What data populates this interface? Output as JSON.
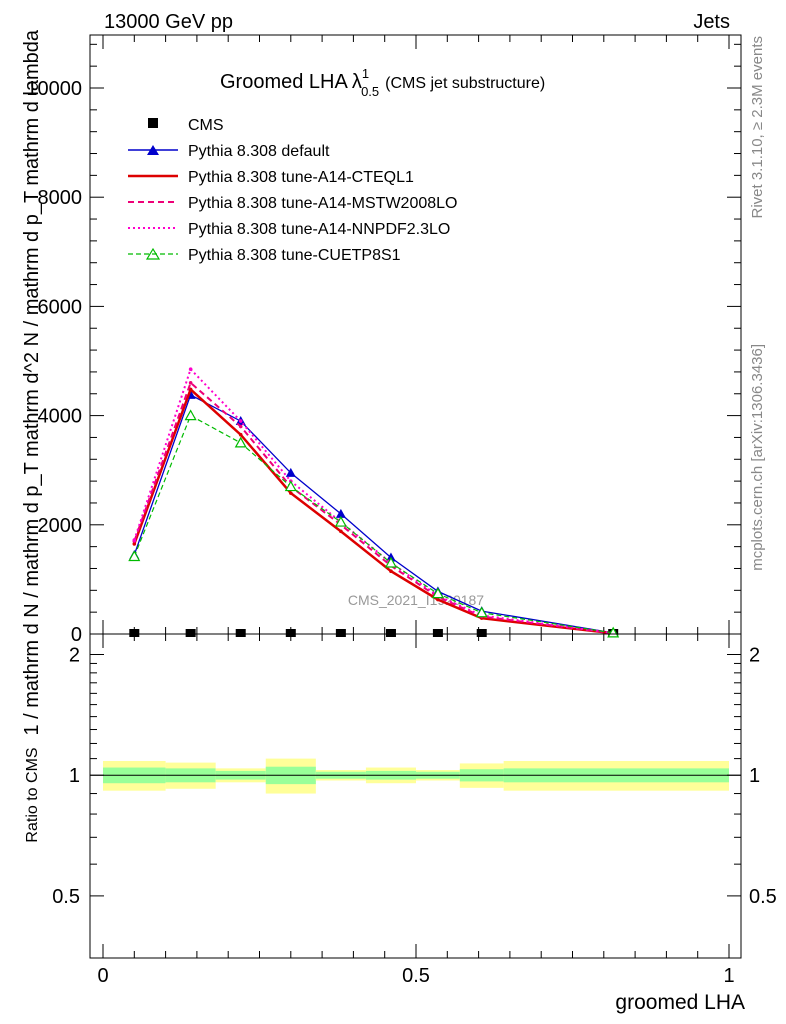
{
  "header": {
    "energy": "13000 GeV pp",
    "process": "Jets"
  },
  "side_text": {
    "rivet": "Rivet 3.1.10, ≥ 2.3M events",
    "mcplots": "mcplots.cern.ch [arXiv:1306.3436]"
  },
  "watermark": "CMS_2021_I1920187",
  "colors": {
    "cms": "#000000",
    "default": "#0000cc",
    "cteql1": "#dd0000",
    "mstw": "#ee0077",
    "nnpdf": "#ff00cc",
    "cuetp8s1": "#00bb00",
    "band_outer": "#ffff99",
    "band_inner": "#99ff99"
  },
  "chart_data": [
    {
      "type": "line",
      "title_main": "Groomed LHA",
      "title_lambda": "λ",
      "title_sup": "1",
      "title_sub": "0.5",
      "title_suffix": "(CMS jet substructure)",
      "ylabel": "1 / mathrm d N / mathrm d p_T mathrm d^2 N / mathrm d p_T mathrm d lambda",
      "ylim": [
        0,
        11000
      ],
      "yticks": [
        0,
        2000,
        4000,
        6000,
        8000,
        10000
      ],
      "ytick_labels": [
        "0",
        "2000",
        "4000",
        "6000",
        "8000",
        "10000"
      ],
      "xlim": [
        0,
        1
      ],
      "legend_placement": "top-left",
      "series": [
        {
          "name": "CMS",
          "style": "data",
          "x": [
            0.05,
            0.14,
            0.22,
            0.3,
            0.38,
            0.46,
            0.535,
            0.605,
            0.815
          ],
          "y": [
            0,
            0,
            0,
            0,
            0,
            0,
            0,
            0,
            0
          ]
        },
        {
          "name": "Pythia 8.308 default",
          "style": "default",
          "x": [
            0.05,
            0.14,
            0.22,
            0.3,
            0.38,
            0.46,
            0.535,
            0.605,
            0.815
          ],
          "y": [
            1450,
            4380,
            3900,
            2950,
            2200,
            1400,
            780,
            420,
            20
          ]
        },
        {
          "name": "Pythia 8.308 tune-A14-CTEQL1",
          "style": "cteql1",
          "x": [
            0.05,
            0.14,
            0.22,
            0.3,
            0.38,
            0.46,
            0.535,
            0.605,
            0.815
          ],
          "y": [
            1650,
            4480,
            3650,
            2580,
            1880,
            1150,
            630,
            290,
            15
          ]
        },
        {
          "name": "Pythia 8.308 tune-A14-MSTW2008LO",
          "style": "mstw",
          "x": [
            0.05,
            0.14,
            0.22,
            0.3,
            0.38,
            0.46,
            0.535,
            0.605,
            0.815
          ],
          "y": [
            1700,
            4600,
            3800,
            2700,
            2000,
            1250,
            680,
            320,
            15
          ]
        },
        {
          "name": "Pythia 8.308 tune-A14-NNPDF2.3LO",
          "style": "nnpdf",
          "x": [
            0.05,
            0.14,
            0.22,
            0.3,
            0.38,
            0.46,
            0.535,
            0.605,
            0.815
          ],
          "y": [
            1720,
            4850,
            3900,
            2800,
            2050,
            1300,
            700,
            340,
            18
          ]
        },
        {
          "name": "Pythia 8.308 tune-CUETP8S1",
          "style": "cuetp8s1",
          "x": [
            0.05,
            0.14,
            0.22,
            0.3,
            0.38,
            0.46,
            0.535,
            0.605,
            0.815
          ],
          "y": [
            1420,
            4000,
            3500,
            2700,
            2050,
            1300,
            740,
            390,
            20
          ]
        }
      ]
    },
    {
      "type": "area",
      "ylabel": "Ratio to CMS",
      "xlabel": "groomed LHA",
      "ylim": [
        0.35,
        2.25
      ],
      "yticks": [
        0.5,
        1,
        2
      ],
      "ytick_labels": [
        "0.5",
        "1",
        "2"
      ],
      "xlim": [
        0,
        1
      ],
      "xticks": [
        0,
        0.5,
        1
      ],
      "xtick_labels": [
        "0",
        "0.5",
        "1"
      ],
      "bins": [
        {
          "lo": 0.0,
          "hi": 0.1,
          "outer": 0.085,
          "inner": 0.045
        },
        {
          "lo": 0.1,
          "hi": 0.18,
          "outer": 0.075,
          "inner": 0.04
        },
        {
          "lo": 0.18,
          "hi": 0.26,
          "outer": 0.04,
          "inner": 0.025
        },
        {
          "lo": 0.26,
          "hi": 0.34,
          "outer": 0.1,
          "inner": 0.05
        },
        {
          "lo": 0.34,
          "hi": 0.42,
          "outer": 0.03,
          "inner": 0.02
        },
        {
          "lo": 0.42,
          "hi": 0.5,
          "outer": 0.045,
          "inner": 0.025
        },
        {
          "lo": 0.5,
          "hi": 0.57,
          "outer": 0.03,
          "inner": 0.02
        },
        {
          "lo": 0.57,
          "hi": 0.64,
          "outer": 0.07,
          "inner": 0.035
        },
        {
          "lo": 0.64,
          "hi": 1.0,
          "outer": 0.085,
          "inner": 0.04
        }
      ],
      "reference_line": 1
    }
  ]
}
